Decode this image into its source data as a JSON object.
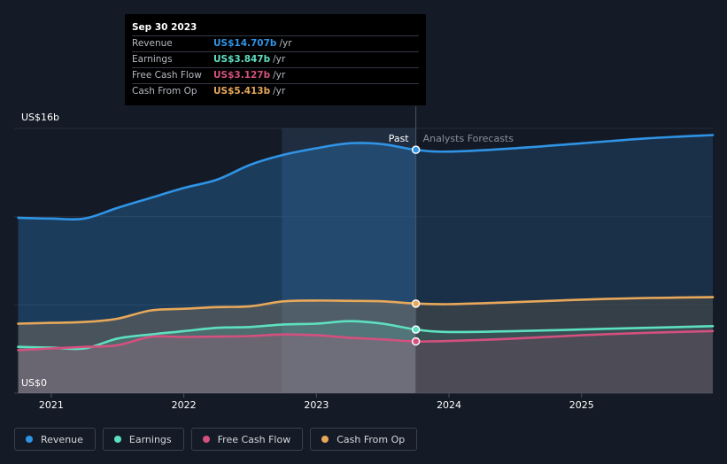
{
  "tooltip": {
    "date": "Sep 30 2023",
    "rows": [
      {
        "label": "Revenue",
        "value": "US$14.707b",
        "unit": "/yr",
        "color": "#2f94e6"
      },
      {
        "label": "Earnings",
        "value": "US$3.847b",
        "unit": "/yr",
        "color": "#5ee0c0"
      },
      {
        "label": "Free Cash Flow",
        "value": "US$3.127b",
        "unit": "/yr",
        "color": "#d4507e"
      },
      {
        "label": "Cash From Op",
        "value": "US$5.413b",
        "unit": "/yr",
        "color": "#e8a85a"
      }
    ]
  },
  "legend": [
    {
      "label": "Revenue",
      "color": "#2f94e6"
    },
    {
      "label": "Earnings",
      "color": "#5ee0c0"
    },
    {
      "label": "Free Cash Flow",
      "color": "#d4507e"
    },
    {
      "label": "Cash From Op",
      "color": "#e8a85a"
    }
  ],
  "chart_data": {
    "type": "line",
    "ylim": [
      0,
      16
    ],
    "xlim": [
      2020.72,
      2025.99
    ],
    "y_tick_labels": {
      "top": "US$16b",
      "bottom": "US$0"
    },
    "x_ticks": [
      2021,
      2022,
      2023,
      2024,
      2025
    ],
    "x_tick_labels": [
      "2021",
      "2022",
      "2023",
      "2024",
      "2025"
    ],
    "divider_x": 2023.75,
    "past_label": "Past",
    "forecast_label": "Analysts Forecasts",
    "highlight_from_x": 2022.74,
    "series": [
      {
        "name": "Revenue",
        "color": "#2f94e6",
        "x": [
          2020.75,
          2021.0,
          2021.25,
          2021.5,
          2021.75,
          2022.0,
          2022.25,
          2022.5,
          2022.75,
          2023.0,
          2023.25,
          2023.5,
          2023.75,
          2024.0,
          2024.5,
          2025.0,
          2025.5,
          2025.99
        ],
        "y": [
          10.6,
          10.55,
          10.55,
          11.2,
          11.8,
          12.4,
          12.9,
          13.8,
          14.4,
          14.8,
          15.1,
          15.05,
          14.707,
          14.6,
          14.8,
          15.1,
          15.4,
          15.6
        ]
      },
      {
        "name": "Cash From Op",
        "color": "#e8a85a",
        "x": [
          2020.75,
          2021.0,
          2021.25,
          2021.5,
          2021.75,
          2022.0,
          2022.25,
          2022.5,
          2022.75,
          2023.0,
          2023.25,
          2023.5,
          2023.75,
          2024.0,
          2024.5,
          2025.0,
          2025.5,
          2025.99
        ],
        "y": [
          4.2,
          4.25,
          4.3,
          4.5,
          5.0,
          5.1,
          5.2,
          5.25,
          5.55,
          5.6,
          5.58,
          5.55,
          5.413,
          5.38,
          5.5,
          5.65,
          5.75,
          5.8
        ]
      },
      {
        "name": "Earnings",
        "color": "#5ee0c0",
        "x": [
          2020.75,
          2021.0,
          2021.25,
          2021.5,
          2021.75,
          2022.0,
          2022.25,
          2022.5,
          2022.75,
          2023.0,
          2023.25,
          2023.5,
          2023.75,
          2024.0,
          2024.5,
          2025.0,
          2025.5,
          2025.99
        ],
        "y": [
          2.8,
          2.75,
          2.7,
          3.3,
          3.55,
          3.75,
          3.95,
          4.0,
          4.15,
          4.2,
          4.35,
          4.2,
          3.847,
          3.7,
          3.75,
          3.85,
          3.95,
          4.05
        ]
      },
      {
        "name": "Free Cash Flow",
        "color": "#d4507e",
        "x": [
          2020.75,
          2021.0,
          2021.25,
          2021.5,
          2021.75,
          2022.0,
          2022.25,
          2022.5,
          2022.75,
          2023.0,
          2023.25,
          2023.5,
          2023.75,
          2024.0,
          2024.5,
          2025.0,
          2025.5,
          2025.99
        ],
        "y": [
          2.6,
          2.7,
          2.8,
          2.9,
          3.4,
          3.4,
          3.42,
          3.45,
          3.55,
          3.5,
          3.35,
          3.25,
          3.127,
          3.15,
          3.3,
          3.5,
          3.65,
          3.75
        ]
      }
    ]
  }
}
